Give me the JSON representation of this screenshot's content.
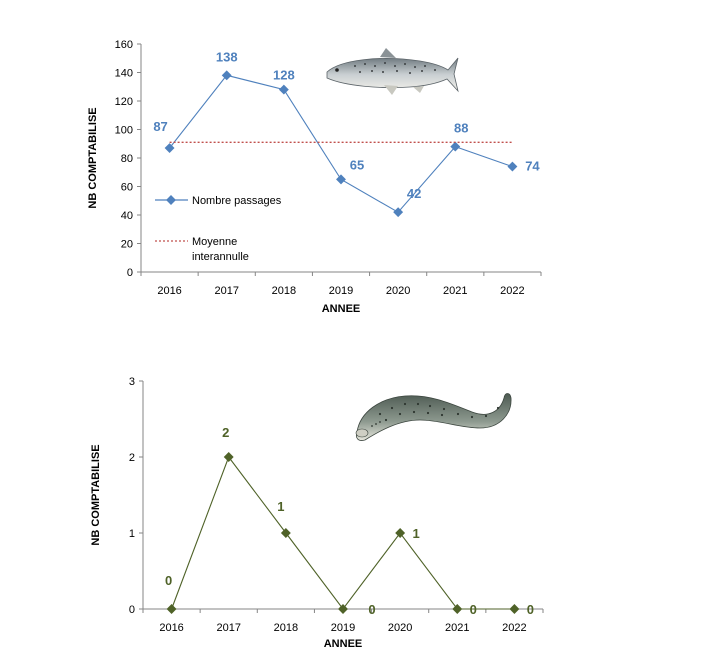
{
  "chart_data": [
    {
      "type": "line",
      "categories": [
        "2016",
        "2017",
        "2018",
        "2019",
        "2020",
        "2021",
        "2022"
      ],
      "ylim": [
        0,
        160
      ],
      "yticks": [
        "0",
        "20",
        "40",
        "60",
        "80",
        "100",
        "120",
        "140",
        "160"
      ],
      "xlabel": "ANNEE",
      "ylabel": "NB COMPTABILISE",
      "series": [
        {
          "name": "Nombre passages",
          "values": [
            87,
            138,
            128,
            65,
            42,
            88,
            74
          ],
          "color": "#4f81bd"
        },
        {
          "name": "Moyenne interannulle",
          "values": [
            91,
            91,
            91,
            91,
            91,
            91,
            91
          ],
          "color": "#c0504d",
          "style": "dotted"
        }
      ],
      "data_labels": [
        "87",
        "138",
        "128",
        "65",
        "42",
        "88",
        "74"
      ],
      "legend": {
        "placement": "left",
        "item1": "Nombre passages",
        "item2_line1": "Moyenne",
        "item2_line2": "interannulle"
      },
      "icon": "salmon-icon"
    },
    {
      "type": "line",
      "categories": [
        "2016",
        "2017",
        "2018",
        "2019",
        "2020",
        "2021",
        "2022"
      ],
      "ylim": [
        0,
        3
      ],
      "yticks": [
        "0",
        "1",
        "2",
        "3"
      ],
      "xlabel": "ANNEE",
      "ylabel": "NB COMPTABILISE",
      "series": [
        {
          "values": [
            0,
            2,
            1,
            0,
            1,
            0,
            0
          ],
          "color": "#4f6228"
        }
      ],
      "data_labels": [
        "0",
        "2",
        "1",
        "0",
        "1",
        "0",
        "0"
      ],
      "icon": "lamprey-icon"
    }
  ]
}
